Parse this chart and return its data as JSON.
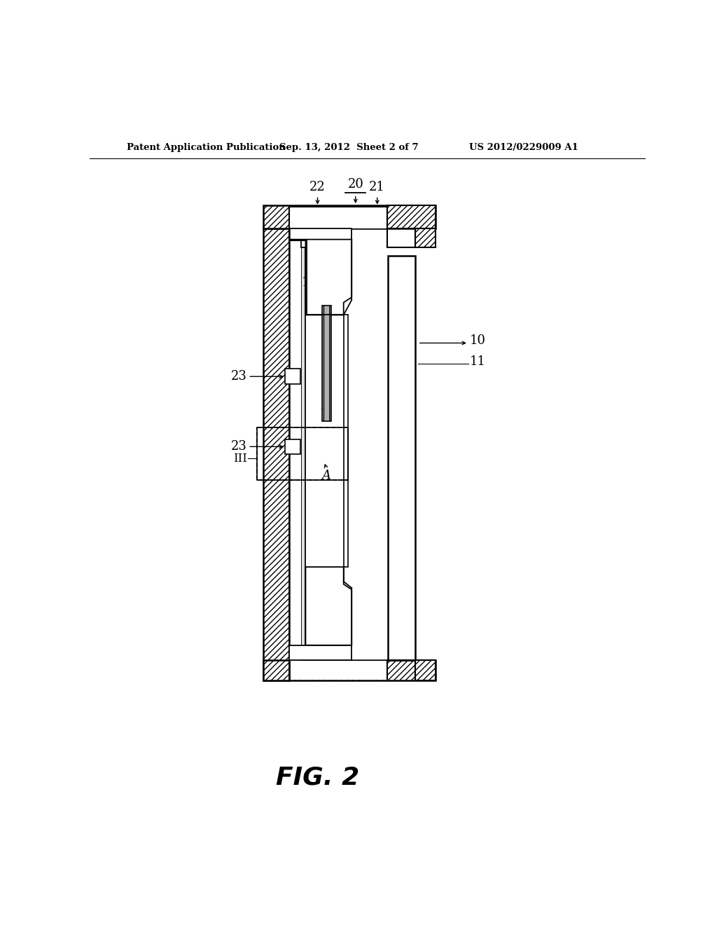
{
  "title_left": "Patent Application Publication",
  "title_mid": "Sep. 13, 2012  Sheet 2 of 7",
  "title_right": "US 2012/0229009 A1",
  "fig_label": "FIG. 2",
  "bg_color": "#ffffff",
  "lc": "#000000"
}
